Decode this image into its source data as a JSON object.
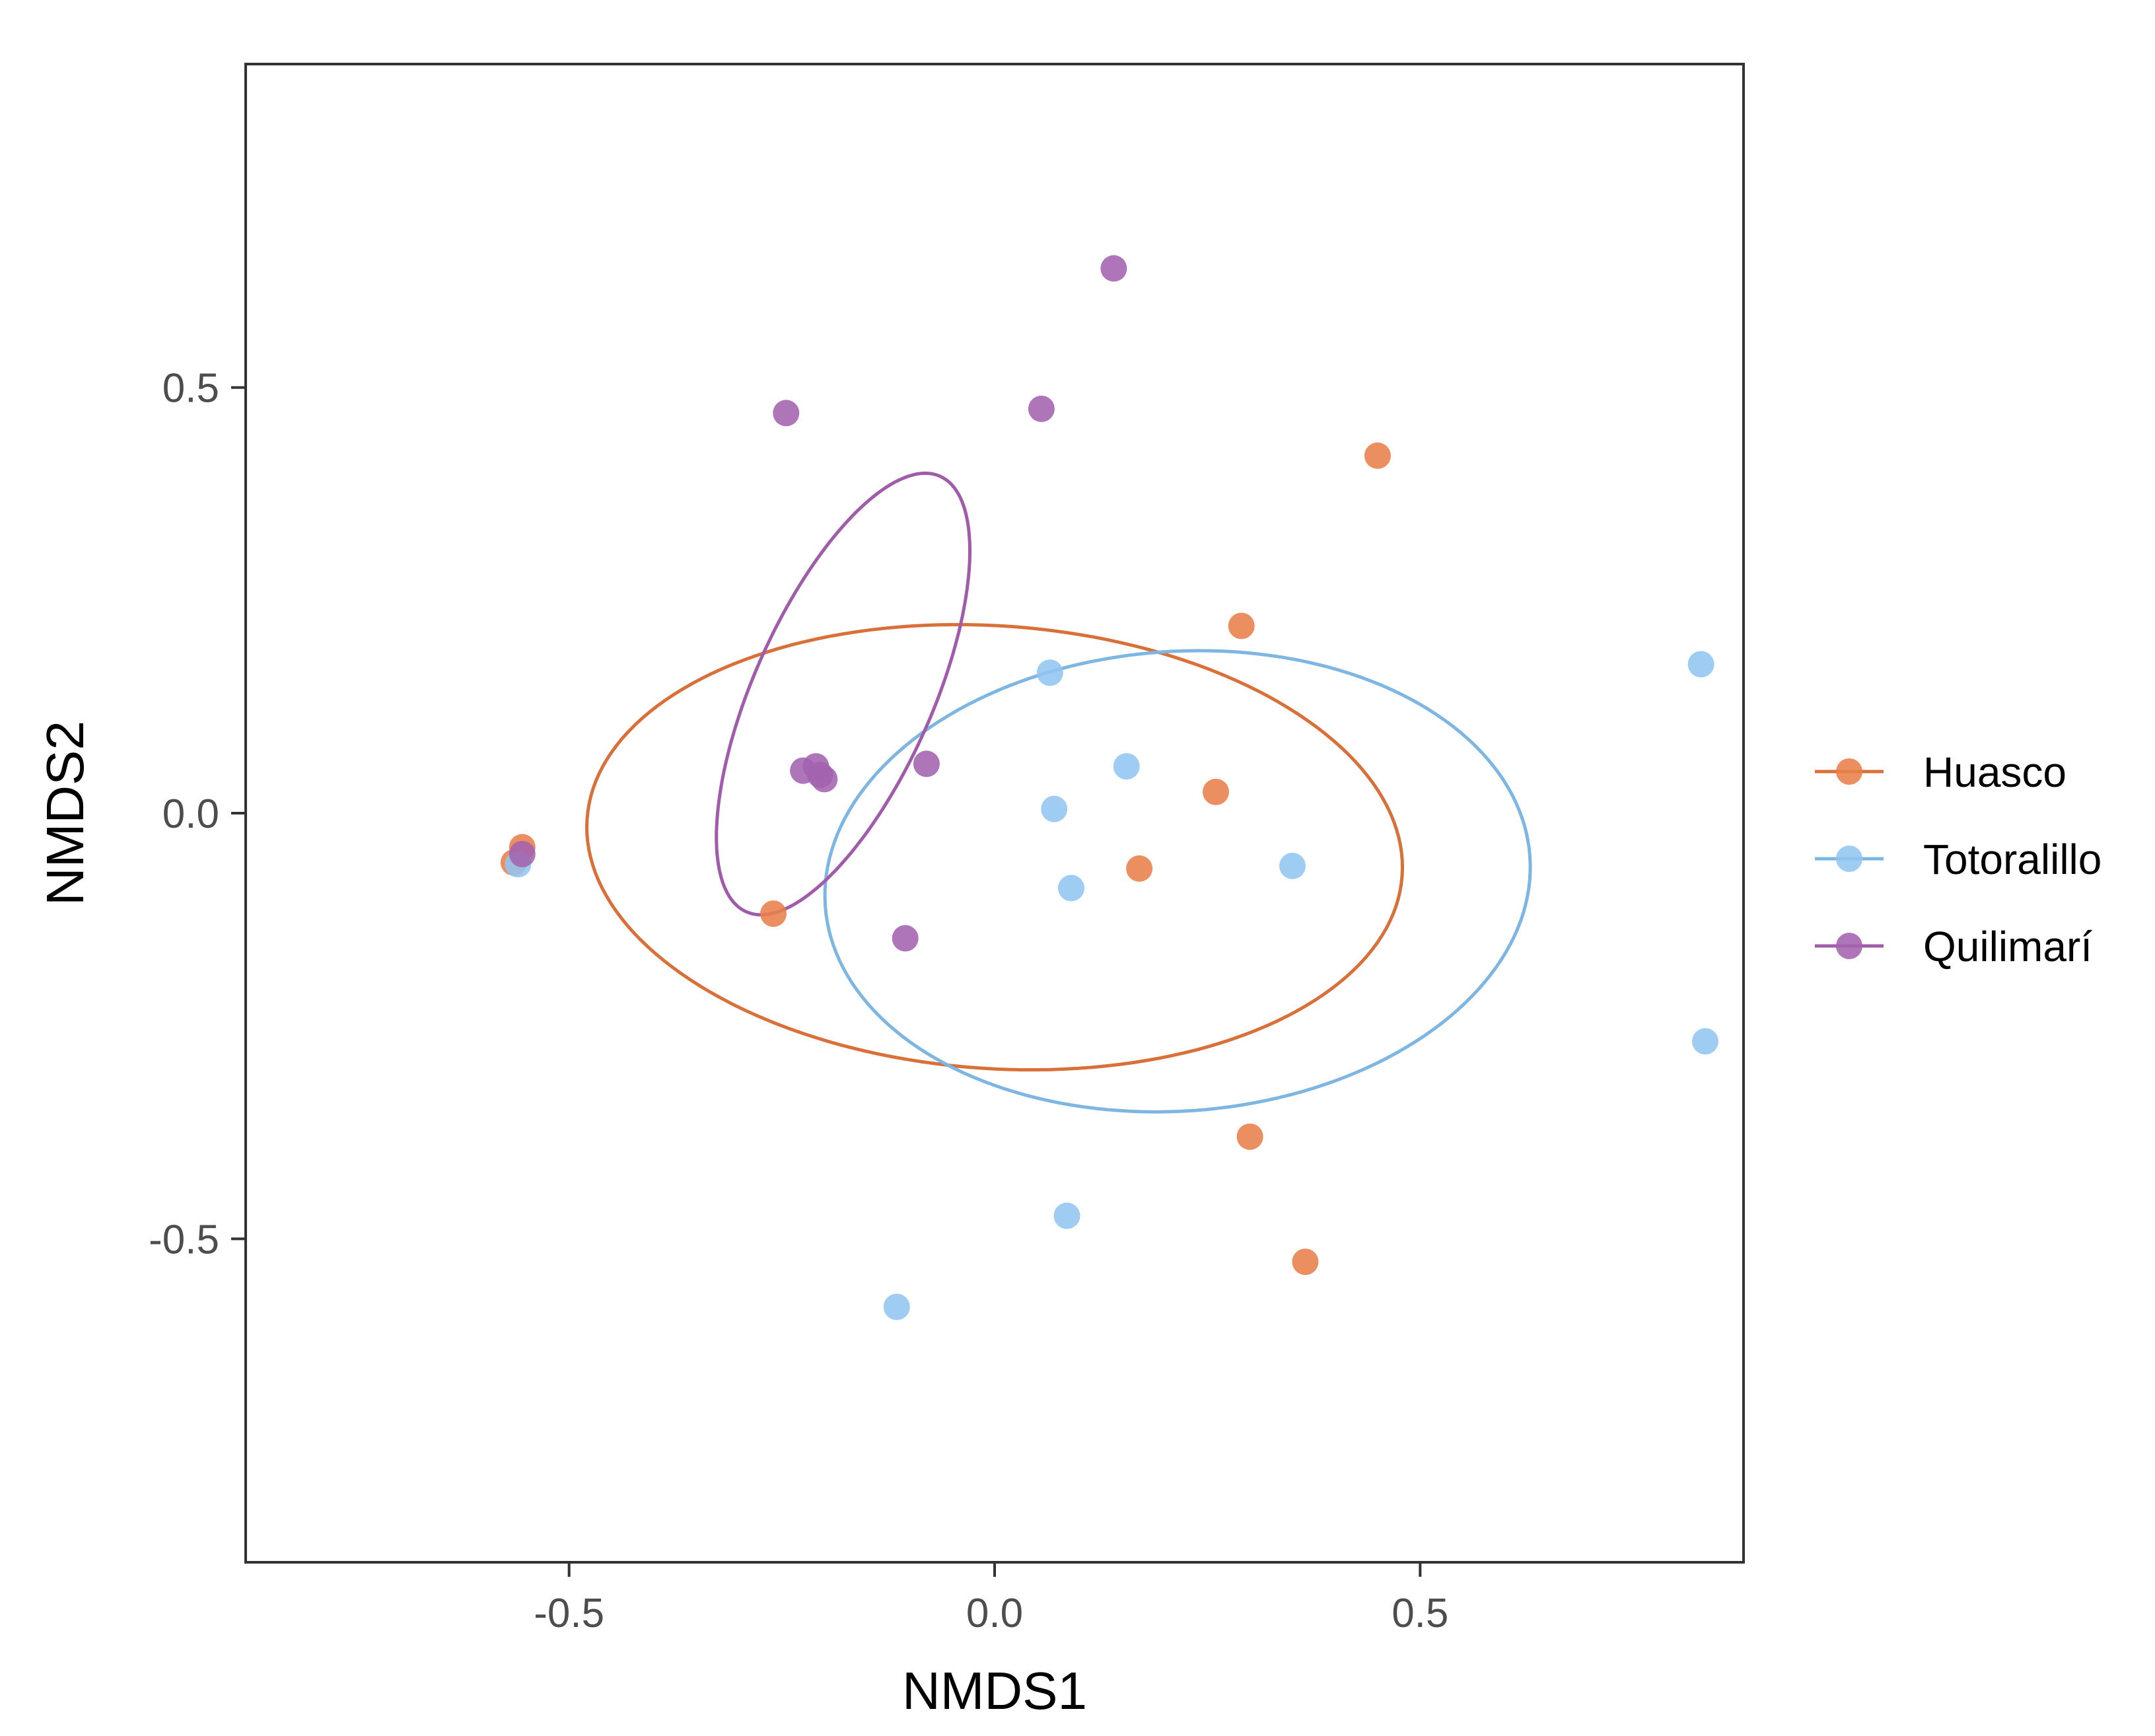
{
  "chart_data": {
    "type": "scatter",
    "title": "",
    "xlabel": "NMDS1",
    "ylabel": "NMDS2",
    "xlim": [
      -0.88,
      0.88
    ],
    "ylim": [
      -0.88,
      0.88
    ],
    "xticks": [
      -0.5,
      0.0,
      0.5
    ],
    "yticks": [
      -0.5,
      0.0,
      0.5
    ],
    "xtick_labels": [
      "-0.5",
      "0.0",
      "0.5"
    ],
    "ytick_labels": [
      "-0.5",
      "0.0",
      "0.5"
    ],
    "grid": false,
    "legend_position": "right",
    "series": [
      {
        "name": "Huasco",
        "color": "#E8804A",
        "points": [
          [
            -0.555,
            -0.04
          ],
          [
            -0.565,
            -0.058
          ],
          [
            -0.26,
            -0.118
          ],
          [
            0.45,
            0.42
          ],
          [
            0.29,
            0.22
          ],
          [
            0.26,
            0.025
          ],
          [
            0.17,
            -0.065
          ],
          [
            0.3,
            -0.38
          ],
          [
            0.365,
            -0.527
          ]
        ],
        "ellipse": {
          "center": [
            0.0,
            -0.04
          ],
          "semi_axes": [
            0.48,
            0.26
          ],
          "angle_deg": -4
        }
      },
      {
        "name": "Totoralillo",
        "color": "#92C5F0",
        "points": [
          [
            -0.56,
            -0.06
          ],
          [
            0.065,
            0.165
          ],
          [
            0.155,
            0.055
          ],
          [
            0.07,
            0.005
          ],
          [
            0.09,
            -0.088
          ],
          [
            0.35,
            -0.062
          ],
          [
            0.83,
            0.175
          ],
          [
            0.835,
            -0.268
          ],
          [
            0.085,
            -0.473
          ],
          [
            -0.115,
            -0.58
          ]
        ],
        "ellipse": {
          "center": [
            0.215,
            -0.08
          ],
          "semi_axes": [
            0.415,
            0.27
          ],
          "angle_deg": 4
        }
      },
      {
        "name": "Quilimarí",
        "color": "#A363AE",
        "points": [
          [
            -0.555,
            -0.048
          ],
          [
            -0.245,
            0.47
          ],
          [
            0.055,
            0.475
          ],
          [
            0.14,
            0.64
          ],
          [
            -0.225,
            0.05
          ],
          [
            -0.21,
            0.055
          ],
          [
            -0.205,
            0.045
          ],
          [
            -0.2,
            0.04
          ],
          [
            -0.08,
            0.058
          ],
          [
            -0.105,
            -0.147
          ]
        ],
        "ellipse": {
          "center": [
            -0.178,
            0.14
          ],
          "semi_axes": [
            0.28,
            0.105
          ],
          "angle_deg": 66
        }
      }
    ]
  }
}
